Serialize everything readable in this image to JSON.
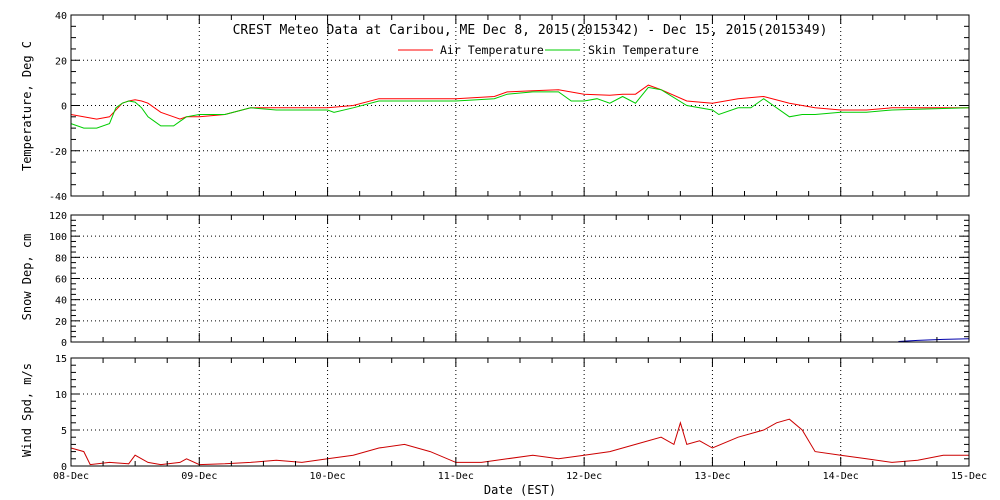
{
  "chart_data": [
    {
      "type": "line",
      "title": "CREST Meteo Data at Caribou, ME   Dec  8, 2015(2015342) - Dec 15, 2015(2015349)",
      "ylabel": "Temperature, Deg C",
      "ylim": [
        -40,
        40
      ],
      "yticks": [
        -40,
        -20,
        0,
        20,
        40
      ],
      "legend": "top-center",
      "grid": true,
      "x_units": "days since 08-Dec",
      "series": [
        {
          "name": "Air Temperature",
          "color": "#ff0000",
          "x": [
            0,
            0.2,
            0.3,
            0.4,
            0.45,
            0.5,
            0.55,
            0.6,
            0.7,
            0.8,
            0.85,
            0.9,
            1.0,
            1.2,
            1.4,
            1.6,
            2.0,
            2.2,
            2.4,
            3.0,
            3.3,
            3.4,
            3.6,
            3.8,
            4.0,
            4.2,
            4.3,
            4.4,
            4.5,
            4.6,
            4.8,
            5.0,
            5.2,
            5.4,
            5.6,
            5.8,
            6.0,
            6.2,
            6.4,
            7.0
          ],
          "y": [
            -4,
            -6,
            -5,
            1,
            2,
            2.5,
            2,
            1,
            -3,
            -5,
            -6,
            -5,
            -5,
            -4,
            -1,
            -1,
            -1,
            0,
            3,
            3,
            4,
            6,
            6.5,
            7,
            5,
            4.5,
            5,
            5,
            9,
            7,
            2,
            1,
            3,
            4,
            1,
            -1,
            -2,
            -2,
            -1,
            -1
          ]
        },
        {
          "name": "Skin Temperature",
          "color": "#00cc00",
          "x": [
            0,
            0.1,
            0.2,
            0.3,
            0.35,
            0.4,
            0.45,
            0.5,
            0.55,
            0.6,
            0.65,
            0.7,
            0.8,
            0.85,
            0.9,
            1.0,
            1.2,
            1.4,
            1.6,
            2.0,
            2.05,
            2.2,
            2.4,
            3.0,
            3.3,
            3.4,
            3.6,
            3.8,
            3.9,
            4.0,
            4.1,
            4.2,
            4.3,
            4.4,
            4.5,
            4.6,
            4.8,
            5.0,
            5.05,
            5.2,
            5.3,
            5.4,
            5.6,
            5.7,
            5.8,
            6.0,
            6.2,
            6.4,
            7.0
          ],
          "y": [
            -8,
            -10,
            -10,
            -8,
            -1,
            1,
            2,
            1.5,
            -1,
            -5,
            -7,
            -9,
            -9,
            -7,
            -5,
            -4,
            -4,
            -1,
            -2,
            -2,
            -3,
            -1,
            2,
            2,
            3,
            5,
            6,
            6,
            2,
            2,
            3,
            1,
            4,
            1,
            8,
            7,
            0,
            -2,
            -4,
            -1,
            -1,
            3,
            -5,
            -4,
            -4,
            -3,
            -3,
            -2,
            -1
          ]
        }
      ]
    },
    {
      "type": "line",
      "ylabel": "Snow Dep, cm",
      "ylim": [
        0,
        120
      ],
      "yticks": [
        0,
        20,
        40,
        60,
        80,
        100,
        120
      ],
      "grid": true,
      "series": [
        {
          "color": "#0000aa",
          "x": [
            6.45,
            6.6,
            6.8,
            7.0
          ],
          "y": [
            0.5,
            1.5,
            2.5,
            3
          ]
        }
      ]
    },
    {
      "type": "line",
      "ylabel": "Wind Spd, m/s",
      "xlabel": "Date (EST)",
      "ylim": [
        0,
        15
      ],
      "yticks": [
        0,
        5,
        10,
        15
      ],
      "xticks": [
        "08-Dec",
        "09-Dec",
        "10-Dec",
        "11-Dec",
        "12-Dec",
        "13-Dec",
        "14-Dec",
        "15-Dec"
      ],
      "grid": true,
      "series": [
        {
          "color": "#cc0000",
          "x": [
            0,
            0.1,
            0.15,
            0.3,
            0.45,
            0.5,
            0.6,
            0.7,
            0.85,
            0.9,
            1.0,
            1.2,
            1.4,
            1.6,
            1.8,
            2.0,
            2.2,
            2.4,
            2.6,
            2.8,
            3.0,
            3.2,
            3.4,
            3.6,
            3.8,
            4.0,
            4.2,
            4.4,
            4.6,
            4.7,
            4.75,
            4.8,
            4.9,
            5.0,
            5.2,
            5.4,
            5.5,
            5.6,
            5.7,
            5.8,
            6.0,
            6.2,
            6.4,
            6.6,
            6.8,
            7.0
          ],
          "y": [
            2.5,
            2,
            0.2,
            0.5,
            0.3,
            1.5,
            0.5,
            0.2,
            0.5,
            1,
            0.2,
            0.3,
            0.5,
            0.8,
            0.5,
            1,
            1.5,
            2.5,
            3,
            2,
            0.5,
            0.5,
            1,
            1.5,
            1,
            1.5,
            2,
            3,
            4,
            3,
            6,
            3,
            3.5,
            2.5,
            4,
            5,
            6,
            6.5,
            5,
            2,
            1.5,
            1,
            0.5,
            0.8,
            1.5,
            1.5
          ]
        }
      ]
    }
  ]
}
